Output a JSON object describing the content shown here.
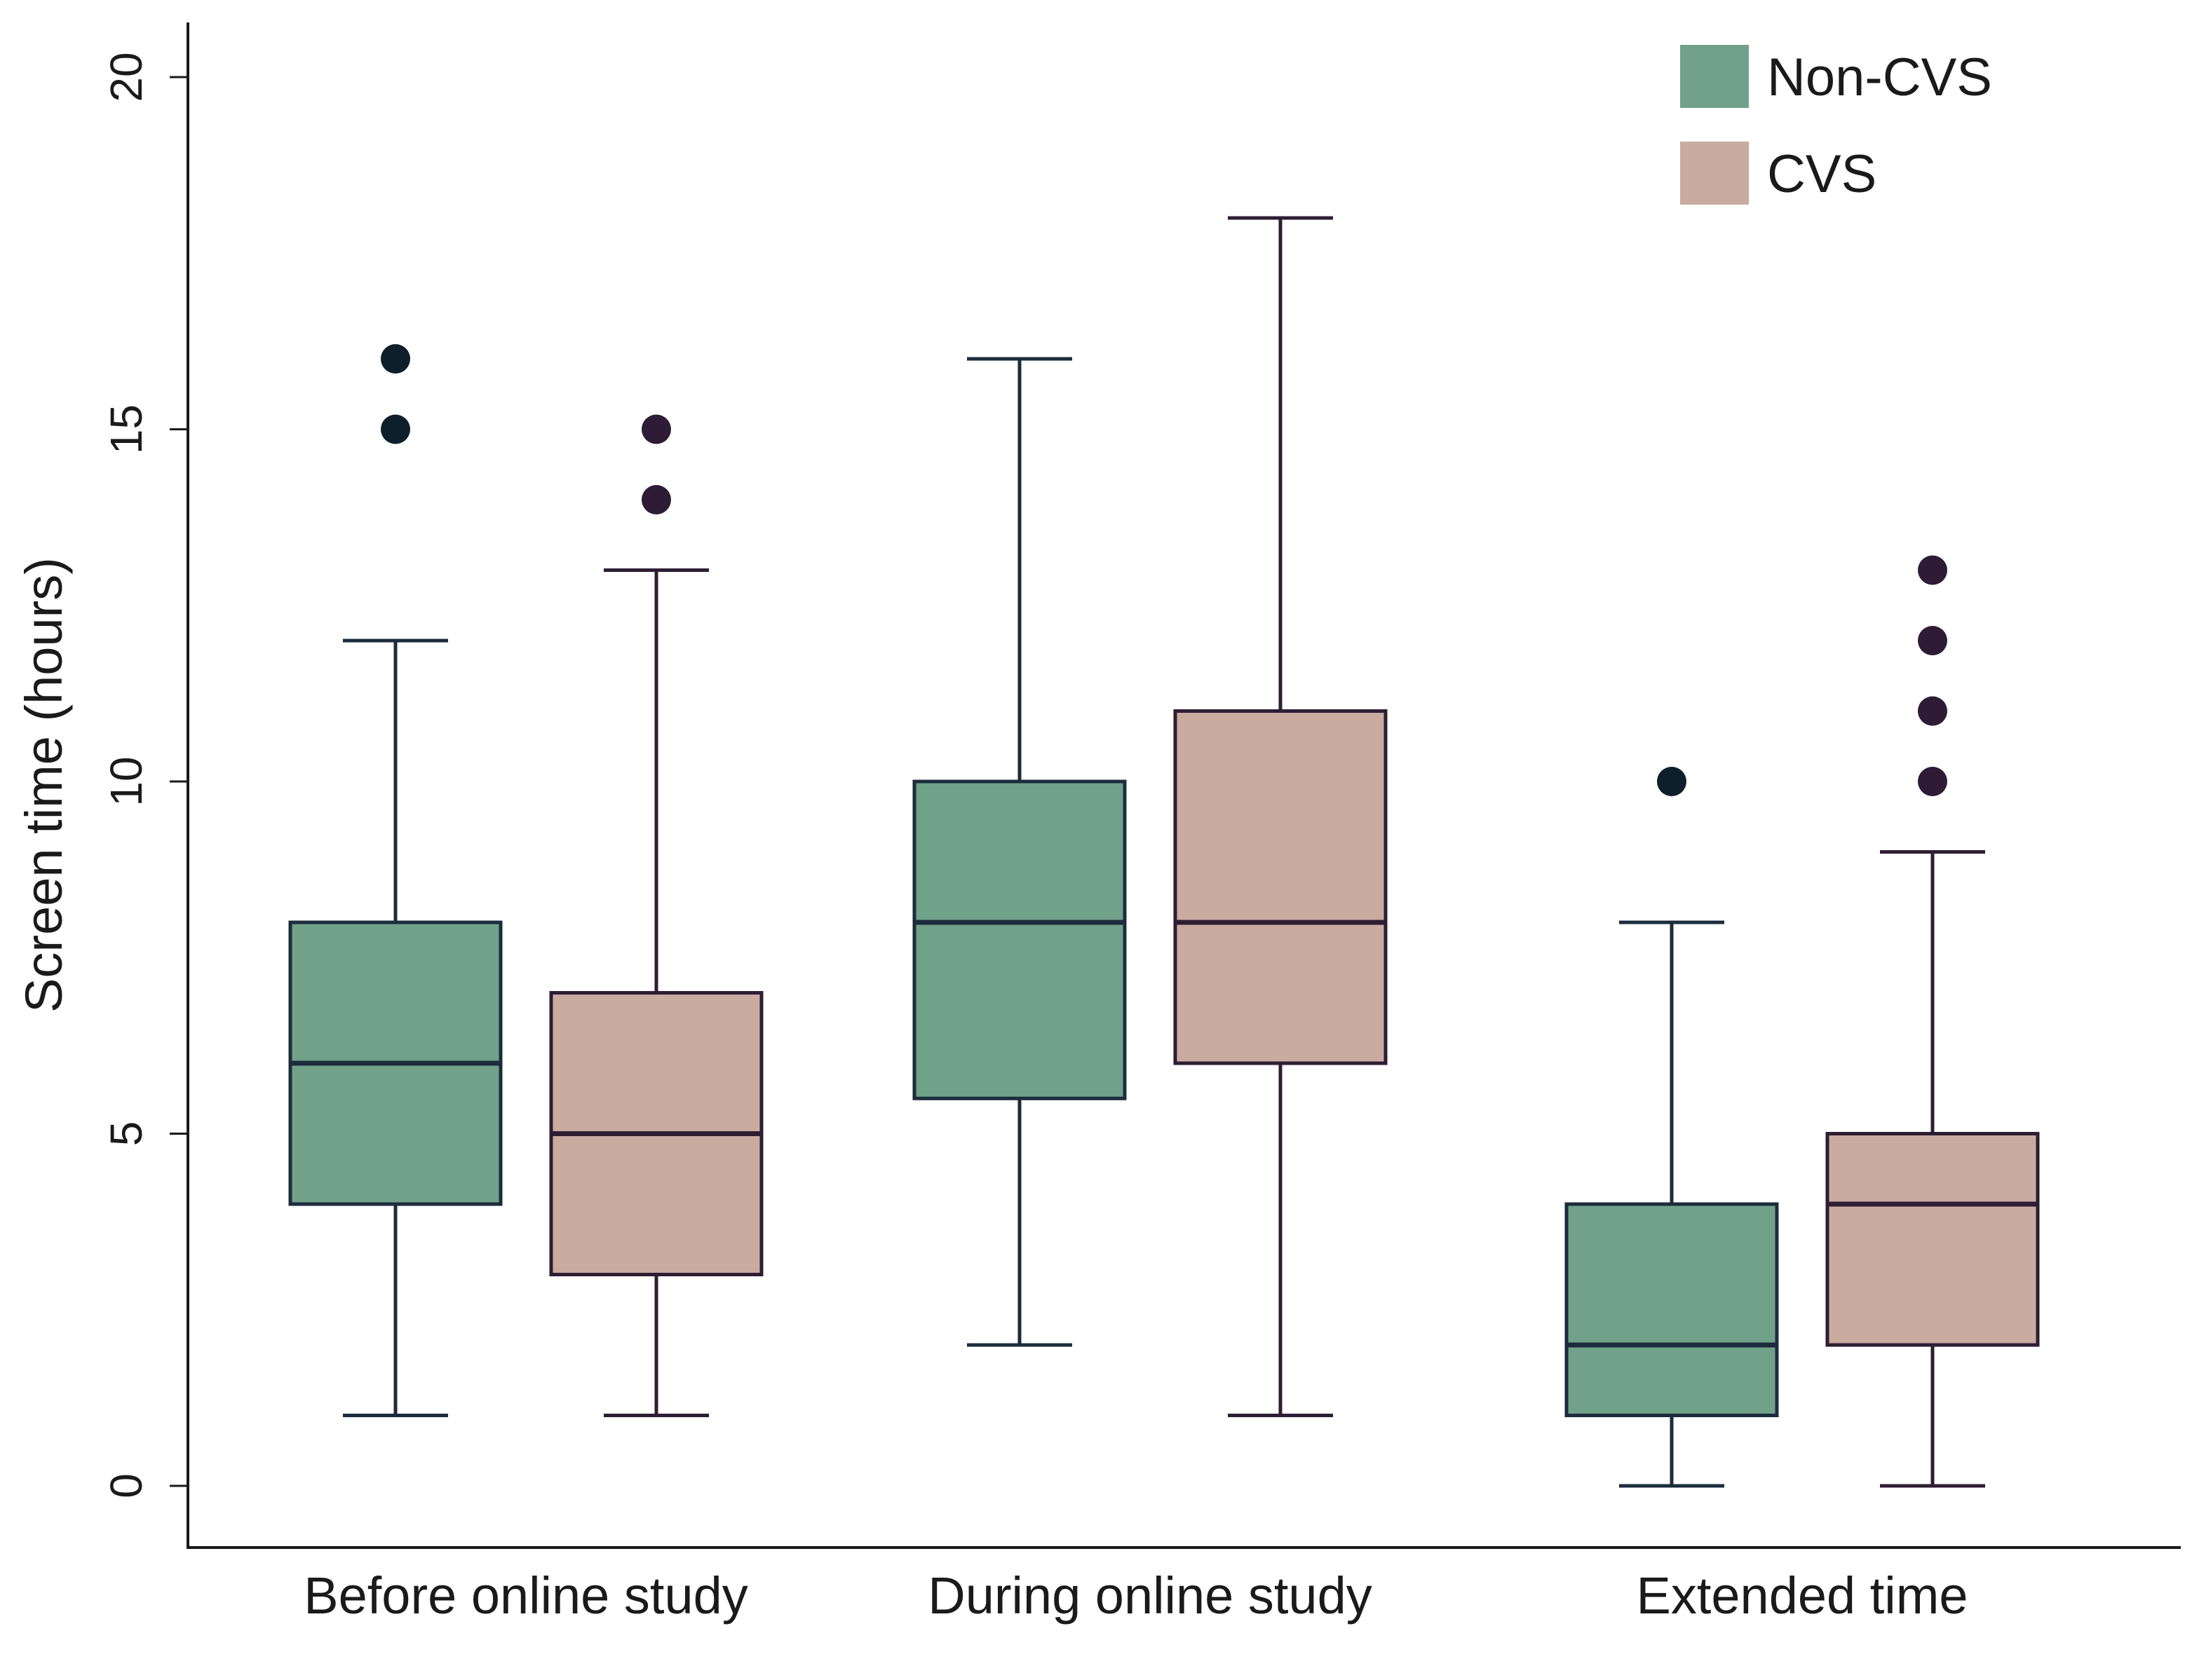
{
  "chart_data": {
    "type": "boxplot",
    "title": "",
    "xlabel": "",
    "ylabel": "Screen time  (hours)",
    "ylim": [
      0,
      20
    ],
    "yticks": [
      0,
      5,
      10,
      15,
      20
    ],
    "grid": false,
    "legend_position": "top-right",
    "categories": [
      "Before online study",
      "During online study",
      "Extended time"
    ],
    "series": [
      {
        "name": "Non-CVS",
        "color": "#72a18a",
        "stroke": "#1c2c3c",
        "outlier_color": "#0d1f2a",
        "boxes": [
          {
            "whisker_low": 1,
            "q1": 4,
            "median": 6,
            "q3": 8,
            "whisker_high": 12,
            "outliers": [
              15,
              16
            ]
          },
          {
            "whisker_low": 2,
            "q1": 5.5,
            "median": 8,
            "q3": 10,
            "whisker_high": 16,
            "outliers": []
          },
          {
            "whisker_low": 0,
            "q1": 1,
            "median": 2,
            "q3": 4,
            "whisker_high": 8,
            "outliers": [
              10
            ]
          }
        ]
      },
      {
        "name": "CVS",
        "color": "#c9aba0",
        "stroke": "#2e1e34",
        "outlier_color": "#2e1b36",
        "boxes": [
          {
            "whisker_low": 1,
            "q1": 3,
            "median": 5,
            "q3": 7,
            "whisker_high": 13,
            "outliers": [
              14,
              15
            ]
          },
          {
            "whisker_low": 1,
            "q1": 6,
            "median": 8,
            "q3": 11,
            "whisker_high": 18,
            "outliers": []
          },
          {
            "whisker_low": 0,
            "q1": 2,
            "median": 4,
            "q3": 5,
            "whisker_high": 9,
            "outliers": [
              10,
              11,
              12,
              13
            ]
          }
        ]
      }
    ]
  }
}
